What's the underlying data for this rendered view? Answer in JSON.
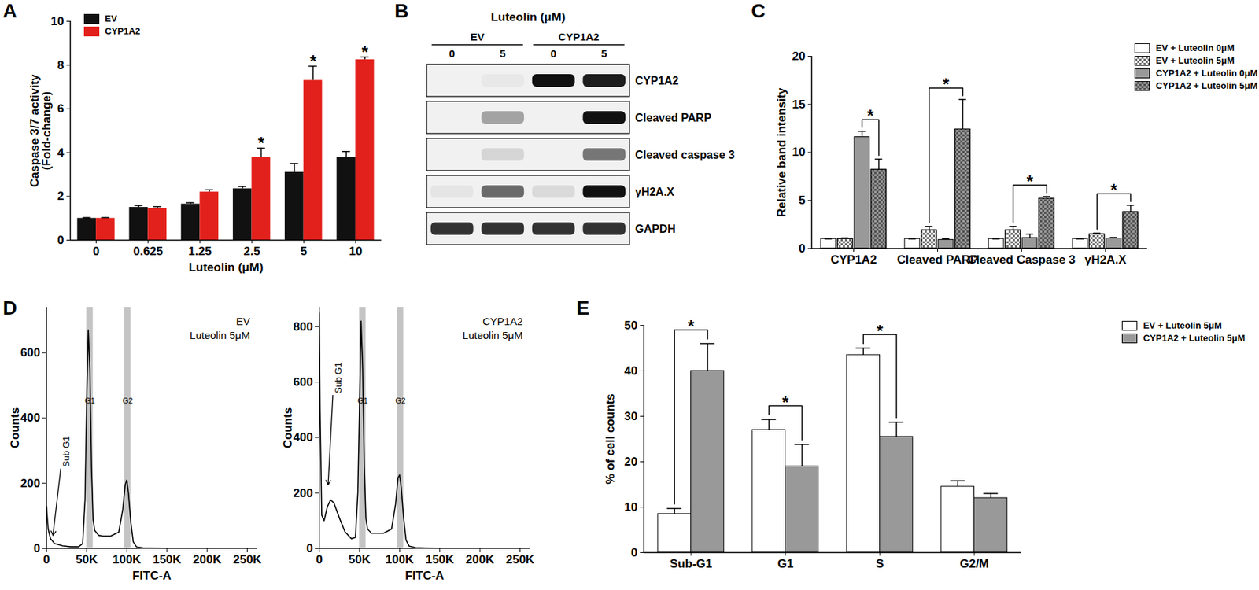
{
  "chart_data": [
    {
      "panel": "A",
      "type": "bar",
      "x_label": "Luteolin (μM)",
      "y_label": "Caspase 3/7 activity\n(Fold-change)",
      "categories": [
        "0",
        "0.625",
        "1.25",
        "2.5",
        "5",
        "10"
      ],
      "series": [
        {
          "name": "EV",
          "color": "#111111",
          "values": [
            1,
            1.5,
            1.65,
            2.35,
            3.1,
            3.8
          ],
          "errors": [
            0.03,
            0.08,
            0.06,
            0.1,
            0.4,
            0.25
          ]
        },
        {
          "name": "CYP1A2",
          "color": "#e3211c",
          "values": [
            1,
            1.45,
            2.2,
            3.8,
            7.3,
            8.25
          ],
          "errors": [
            0.03,
            0.08,
            0.1,
            0.4,
            0.65,
            0.12
          ]
        }
      ],
      "ylim": [
        0,
        10
      ],
      "yticks": [
        0,
        2,
        4,
        6,
        8,
        10
      ],
      "legend": "top-left",
      "annotations": [
        {
          "category": "2.5",
          "series": "CYP1A2",
          "text": "*"
        },
        {
          "category": "5",
          "series": "CYP1A2",
          "text": "*"
        },
        {
          "category": "10",
          "series": "CYP1A2",
          "text": "*"
        }
      ]
    },
    {
      "panel": "B",
      "type": "blot",
      "title": "Luteolin (μM)",
      "groups": [
        {
          "name": "EV",
          "lanes": [
            "0",
            "5"
          ]
        },
        {
          "name": "CYP1A2",
          "lanes": [
            "0",
            "5"
          ]
        }
      ],
      "rows": [
        {
          "label": "CYP1A2",
          "intensity": [
            0,
            0.04,
            1,
            0.95
          ]
        },
        {
          "label": "Cleaved PARP",
          "intensity": [
            0,
            0.35,
            0,
            1
          ]
        },
        {
          "label": "Cleaved caspase 3",
          "intensity": [
            0,
            0.12,
            0,
            0.55
          ]
        },
        {
          "label": "γH2A.X",
          "intensity": [
            0.05,
            0.6,
            0.1,
            1
          ]
        },
        {
          "label": "GAPDH",
          "intensity": [
            0.85,
            0.85,
            0.85,
            0.85
          ]
        }
      ]
    },
    {
      "panel": "C",
      "type": "bar",
      "y_label": "Relative band intensity",
      "categories": [
        "CYP1A2",
        "Cleaved PARP",
        "Cleaved Caspase 3",
        "γH2A.X"
      ],
      "series": [
        {
          "name": "EV + Luteolin 0μM",
          "color": "#ffffff",
          "values": [
            1,
            1,
            1,
            1
          ],
          "errors": [
            0,
            0,
            0,
            0
          ]
        },
        {
          "name": "EV + Luteolin 5μM",
          "color": "#ffffff",
          "values": [
            1,
            1.9,
            1.9,
            1.5
          ],
          "errors": [
            0.1,
            0.4,
            0.4,
            0.1
          ]
        },
        {
          "name": "CYP1A2 + Luteolin 0μM",
          "color": "#999999",
          "values": [
            11.6,
            0.9,
            1.1,
            1.05
          ],
          "errors": [
            0.6,
            0.1,
            0.4,
            0.1
          ]
        },
        {
          "name": "CYP1A2 + Luteolin 5μM",
          "color": "#999999",
          "values": [
            8.2,
            12.4,
            5.2,
            3.8
          ],
          "errors": [
            1.1,
            3.1,
            0.2,
            0.7
          ]
        }
      ],
      "ylim": [
        0,
        20
      ],
      "yticks": [
        0,
        5,
        10,
        15,
        20
      ],
      "legend": "top-right",
      "comparisons": [
        {
          "category": "CYP1A2",
          "from": "CYP1A2 + Luteolin 0μM",
          "to": "CYP1A2 + Luteolin 5μM",
          "text": "*"
        },
        {
          "category": "Cleaved PARP",
          "from": "EV + Luteolin 5μM",
          "to": "CYP1A2 + Luteolin 5μM",
          "text": "*"
        },
        {
          "category": "Cleaved Caspase 3",
          "from": "EV + Luteolin 5μM",
          "to": "CYP1A2 + Luteolin 5μM",
          "text": "*"
        },
        {
          "category": "γH2A.X",
          "from": "EV + Luteolin 5μM",
          "to": "CYP1A2 + Luteolin 5μM",
          "text": "*"
        }
      ]
    },
    {
      "panel": "D",
      "type": "line",
      "x_label": "FITC-A",
      "y_label": "Counts",
      "color": "#000000",
      "x": [
        0,
        2000,
        5000,
        10000,
        20000,
        30000,
        40000,
        45000,
        48000,
        50000,
        52000,
        54000,
        56000,
        58000,
        60000,
        65000,
        70000,
        80000,
        90000,
        95000,
        98000,
        100000,
        102000,
        105000,
        108000,
        112000,
        120000,
        150000,
        260000
      ],
      "values": [
        130,
        60,
        30,
        15,
        8,
        5,
        5,
        15,
        150,
        450,
        670,
        550,
        250,
        90,
        55,
        40,
        38,
        38,
        50,
        120,
        195,
        210,
        170,
        80,
        20,
        5,
        2,
        0,
        0
      ],
      "xlim": [
        0,
        262144
      ],
      "xticks": [
        0,
        {
          "value": 50000,
          "label": "50K"
        },
        {
          "value": 100000,
          "label": "100K"
        },
        {
          "value": 150000,
          "label": "150K"
        },
        {
          "value": 200000,
          "label": "200K"
        },
        {
          "value": 250000,
          "label": "250K"
        }
      ],
      "ylim": [
        0,
        740
      ],
      "yticks": [
        0,
        200,
        400,
        600
      ],
      "gates": [
        {
          "label": "G1",
          "x": [
            50000,
            58000
          ]
        },
        {
          "label": "G2",
          "x": [
            97000,
            105000
          ]
        }
      ],
      "annotations": [
        {
          "text": "EV\nLuteolin 5μM",
          "position": "top-right"
        },
        {
          "text": "Sub G1",
          "x": 18000,
          "y": 250,
          "arrow_to": [
            8000,
            40
          ]
        }
      ]
    },
    {
      "type": "line",
      "x_label": "FITC-A",
      "y_label": "Counts",
      "color": "#000000",
      "x": [
        0,
        1000,
        3000,
        6000,
        10000,
        14000,
        18000,
        25000,
        32000,
        40000,
        45000,
        48000,
        50000,
        52000,
        54000,
        56000,
        58000,
        60000,
        65000,
        70000,
        80000,
        90000,
        95000,
        98000,
        100000,
        102000,
        105000,
        108000,
        112000,
        120000,
        150000,
        260000
      ],
      "values": [
        850,
        500,
        120,
        100,
        150,
        175,
        165,
        110,
        60,
        35,
        40,
        200,
        500,
        820,
        650,
        300,
        110,
        70,
        55,
        55,
        55,
        70,
        160,
        255,
        265,
        220,
        110,
        30,
        8,
        3,
        0,
        0
      ],
      "xlim": [
        0,
        262144
      ],
      "xticks": [
        0,
        {
          "value": 50000,
          "label": "50K"
        },
        {
          "value": 100000,
          "label": "100K"
        },
        {
          "value": 150000,
          "label": "150K"
        },
        {
          "value": 200000,
          "label": "200K"
        },
        {
          "value": 250000,
          "label": "250K"
        }
      ],
      "ylim": [
        0,
        870
      ],
      "yticks": [
        0,
        200,
        400,
        600,
        800
      ],
      "gates": [
        {
          "label": "G1",
          "x": [
            50000,
            58000
          ]
        },
        {
          "label": "G2",
          "x": [
            97000,
            105000
          ]
        }
      ],
      "annotations": [
        {
          "text": "CYP1A2\nLuteolin 5μM",
          "position": "top-right"
        },
        {
          "text": "Sub G1",
          "x": 17000,
          "y": 560,
          "arrow_to": [
            11000,
            230
          ]
        }
      ]
    },
    {
      "panel": "E",
      "type": "bar",
      "y_label": "% of cell counts",
      "categories": [
        "Sub-G1",
        "G1",
        "S",
        "G2/M"
      ],
      "series": [
        {
          "name": "EV + Luteolin 5μM",
          "color": "#ffffff",
          "values": [
            8.5,
            27,
            43.5,
            14.5
          ],
          "errors": [
            1.2,
            2.3,
            1.5,
            1.3
          ]
        },
        {
          "name": "CYP1A2 + Luteolin 5μM",
          "color": "#999999",
          "values": [
            40,
            19,
            25.5,
            12
          ],
          "errors": [
            6,
            4.8,
            3.2,
            1
          ]
        }
      ],
      "ylim": [
        0,
        50
      ],
      "yticks": [
        0,
        10,
        20,
        30,
        40,
        50
      ],
      "legend": "top-right",
      "comparisons": [
        {
          "category": "Sub-G1",
          "from": "EV + Luteolin 5μM",
          "to": "CYP1A2 + Luteolin 5μM",
          "text": "*"
        },
        {
          "category": "G1",
          "from": "EV + Luteolin 5μM",
          "to": "CYP1A2 + Luteolin 5μM",
          "text": "*"
        },
        {
          "category": "S",
          "from": "EV + Luteolin 5μM",
          "to": "CYP1A2 + Luteolin 5μM",
          "text": "*"
        }
      ]
    }
  ]
}
